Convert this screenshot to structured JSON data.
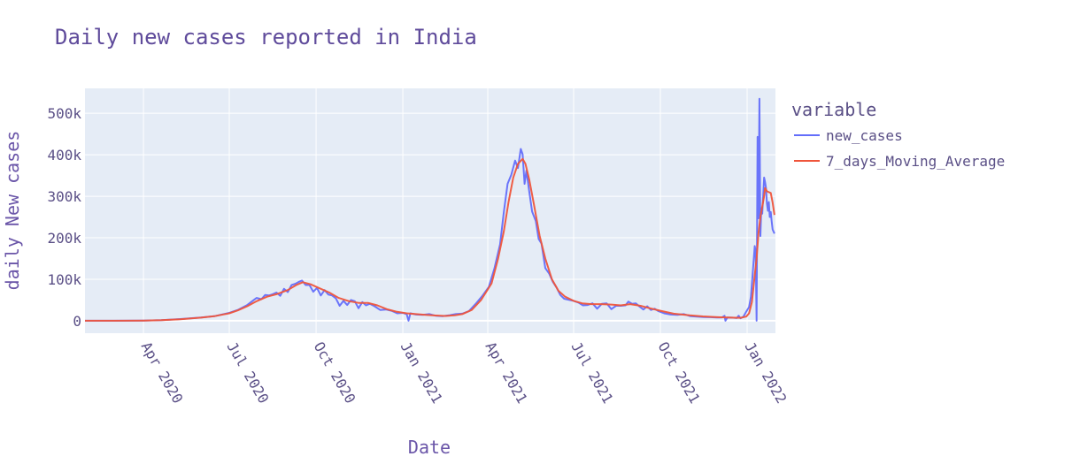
{
  "chart_data": {
    "type": "line",
    "title": "Daily new cases reported in India",
    "xlabel": "Date",
    "ylabel": "daily New cases",
    "legend_title": "variable",
    "legend_position": "right",
    "x_range": [
      "2020-01-30",
      "2022-01-31"
    ],
    "y_range": [
      -30000,
      560000
    ],
    "x_ticks": [
      {
        "date": "2020-04-01",
        "label": "Apr 2020"
      },
      {
        "date": "2020-07-01",
        "label": "Jul 2020"
      },
      {
        "date": "2020-10-01",
        "label": "Oct 2020"
      },
      {
        "date": "2021-01-01",
        "label": "Jan 2021"
      },
      {
        "date": "2021-04-01",
        "label": "Apr 2021"
      },
      {
        "date": "2021-07-01",
        "label": "Jul 2021"
      },
      {
        "date": "2021-10-01",
        "label": "Oct 2021"
      },
      {
        "date": "2022-01-01",
        "label": "Jan 2022"
      }
    ],
    "y_ticks": [
      {
        "value": 0,
        "label": "0"
      },
      {
        "value": 100000,
        "label": "100k"
      },
      {
        "value": 200000,
        "label": "200k"
      },
      {
        "value": 300000,
        "label": "300k"
      },
      {
        "value": 400000,
        "label": "400k"
      },
      {
        "value": 500000,
        "label": "500k"
      }
    ],
    "grid": true,
    "colors": {
      "plot_bg": "#e5ecf6",
      "grid": "#ffffff"
    },
    "series": [
      {
        "name": "new_cases",
        "color": "#636efa",
        "points": [
          [
            "2020-01-30",
            0
          ],
          [
            "2020-03-01",
            0
          ],
          [
            "2020-04-01",
            400
          ],
          [
            "2020-04-20",
            1500
          ],
          [
            "2020-05-10",
            4000
          ],
          [
            "2020-06-01",
            8000
          ],
          [
            "2020-06-15",
            11000
          ],
          [
            "2020-07-01",
            19000
          ],
          [
            "2020-07-10",
            26000
          ],
          [
            "2020-07-20",
            38000
          ],
          [
            "2020-07-27",
            50000
          ],
          [
            "2020-07-30",
            55000
          ],
          [
            "2020-08-04",
            52000
          ],
          [
            "2020-08-08",
            62000
          ],
          [
            "2020-08-12",
            61000
          ],
          [
            "2020-08-16",
            64000
          ],
          [
            "2020-08-20",
            68000
          ],
          [
            "2020-08-24",
            60000
          ],
          [
            "2020-08-28",
            77000
          ],
          [
            "2020-09-01",
            69000
          ],
          [
            "2020-09-05",
            86000
          ],
          [
            "2020-09-09",
            89000
          ],
          [
            "2020-09-13",
            94000
          ],
          [
            "2020-09-16",
            97000
          ],
          [
            "2020-09-20",
            86000
          ],
          [
            "2020-09-24",
            86000
          ],
          [
            "2020-09-28",
            70000
          ],
          [
            "2020-10-02",
            79000
          ],
          [
            "2020-10-06",
            61000
          ],
          [
            "2020-10-10",
            74000
          ],
          [
            "2020-10-14",
            63000
          ],
          [
            "2020-10-18",
            61000
          ],
          [
            "2020-10-22",
            54000
          ],
          [
            "2020-10-26",
            36000
          ],
          [
            "2020-10-30",
            48000
          ],
          [
            "2020-11-03",
            38000
          ],
          [
            "2020-11-07",
            50000
          ],
          [
            "2020-11-11",
            47000
          ],
          [
            "2020-11-15",
            30000
          ],
          [
            "2020-11-19",
            45000
          ],
          [
            "2020-11-23",
            37000
          ],
          [
            "2020-11-27",
            41000
          ],
          [
            "2020-12-02",
            35000
          ],
          [
            "2020-12-08",
            26000
          ],
          [
            "2020-12-14",
            27000
          ],
          [
            "2020-12-20",
            24000
          ],
          [
            "2020-12-26",
            18000
          ],
          [
            "2021-01-01",
            19000
          ],
          [
            "2021-01-05",
            16000
          ],
          [
            "2021-01-07",
            0
          ],
          [
            "2021-01-09",
            18000
          ],
          [
            "2021-01-15",
            15000
          ],
          [
            "2021-01-22",
            14000
          ],
          [
            "2021-01-29",
            16000
          ],
          [
            "2021-02-05",
            12000
          ],
          [
            "2021-02-12",
            11000
          ],
          [
            "2021-02-19",
            13000
          ],
          [
            "2021-02-26",
            16000
          ],
          [
            "2021-03-05",
            17000
          ],
          [
            "2021-03-12",
            23000
          ],
          [
            "2021-03-19",
            40000
          ],
          [
            "2021-03-26",
            59000
          ],
          [
            "2021-04-02",
            81000
          ],
          [
            "2021-04-08",
            126000
          ],
          [
            "2021-04-14",
            184000
          ],
          [
            "2021-04-18",
            261000
          ],
          [
            "2021-04-22",
            330000
          ],
          [
            "2021-04-26",
            352000
          ],
          [
            "2021-04-30",
            386000
          ],
          [
            "2021-05-03",
            368000
          ],
          [
            "2021-05-06",
            414000
          ],
          [
            "2021-05-08",
            401000
          ],
          [
            "2021-05-10",
            330000
          ],
          [
            "2021-05-12",
            362000
          ],
          [
            "2021-05-15",
            311000
          ],
          [
            "2021-05-18",
            263000
          ],
          [
            "2021-05-22",
            240000
          ],
          [
            "2021-05-25",
            197000
          ],
          [
            "2021-05-28",
            186000
          ],
          [
            "2021-06-01",
            127000
          ],
          [
            "2021-06-05",
            114000
          ],
          [
            "2021-06-09",
            94000
          ],
          [
            "2021-06-13",
            80000
          ],
          [
            "2021-06-17",
            62000
          ],
          [
            "2021-06-21",
            53000
          ],
          [
            "2021-06-25",
            51000
          ],
          [
            "2021-07-01",
            48000
          ],
          [
            "2021-07-06",
            44000
          ],
          [
            "2021-07-11",
            37000
          ],
          [
            "2021-07-16",
            38000
          ],
          [
            "2021-07-21",
            42000
          ],
          [
            "2021-07-26",
            29000
          ],
          [
            "2021-07-31",
            41000
          ],
          [
            "2021-08-05",
            42000
          ],
          [
            "2021-08-10",
            28000
          ],
          [
            "2021-08-15",
            36000
          ],
          [
            "2021-08-20",
            36000
          ],
          [
            "2021-08-25",
            37000
          ],
          [
            "2021-08-28",
            46000
          ],
          [
            "2021-09-01",
            41000
          ],
          [
            "2021-09-05",
            42000
          ],
          [
            "2021-09-09",
            34000
          ],
          [
            "2021-09-13",
            27000
          ],
          [
            "2021-09-17",
            35000
          ],
          [
            "2021-09-21",
            26000
          ],
          [
            "2021-09-25",
            29000
          ],
          [
            "2021-09-29",
            23000
          ],
          [
            "2021-10-05",
            18000
          ],
          [
            "2021-10-12",
            15000
          ],
          [
            "2021-10-19",
            14000
          ],
          [
            "2021-10-26",
            16000
          ],
          [
            "2021-11-02",
            11000
          ],
          [
            "2021-11-09",
            10000
          ],
          [
            "2021-11-16",
            9000
          ],
          [
            "2021-11-23",
            8500
          ],
          [
            "2021-11-30",
            8000
          ],
          [
            "2021-12-05",
            8000
          ],
          [
            "2021-12-08",
            12000
          ],
          [
            "2021-12-09",
            0
          ],
          [
            "2021-12-11",
            8000
          ],
          [
            "2021-12-16",
            7500
          ],
          [
            "2021-12-21",
            6500
          ],
          [
            "2021-12-23",
            12000
          ],
          [
            "2021-12-25",
            6000
          ],
          [
            "2021-12-28",
            10000
          ],
          [
            "2021-12-31",
            22000
          ],
          [
            "2022-01-03",
            33000
          ],
          [
            "2022-01-05",
            58000
          ],
          [
            "2022-01-07",
            117000
          ],
          [
            "2022-01-09",
            180000
          ],
          [
            "2022-01-10",
            168000
          ],
          [
            "2022-01-11",
            0
          ],
          [
            "2022-01-12",
            443000
          ],
          [
            "2022-01-13",
            247000
          ],
          [
            "2022-01-14",
            535000
          ],
          [
            "2022-01-15",
            204000
          ],
          [
            "2022-01-16",
            271000
          ],
          [
            "2022-01-17",
            258000
          ],
          [
            "2022-01-18",
            300000
          ],
          [
            "2022-01-19",
            345000
          ],
          [
            "2022-01-20",
            334000
          ],
          [
            "2022-01-21",
            320000
          ],
          [
            "2022-01-22",
            282000
          ],
          [
            "2022-01-23",
            265000
          ],
          [
            "2022-01-24",
            286000
          ],
          [
            "2022-01-25",
            250000
          ],
          [
            "2022-01-26",
            262000
          ],
          [
            "2022-01-27",
            240000
          ],
          [
            "2022-01-28",
            220000
          ],
          [
            "2022-01-30",
            210000
          ]
        ]
      },
      {
        "name": "7_days_Moving_Average",
        "color": "#ef553b",
        "points": [
          [
            "2020-01-30",
            0
          ],
          [
            "2020-03-01",
            0
          ],
          [
            "2020-04-01",
            300
          ],
          [
            "2020-04-20",
            1300
          ],
          [
            "2020-05-10",
            3600
          ],
          [
            "2020-06-01",
            7500
          ],
          [
            "2020-06-15",
            11000
          ],
          [
            "2020-07-01",
            18000
          ],
          [
            "2020-07-10",
            25000
          ],
          [
            "2020-07-20",
            35000
          ],
          [
            "2020-07-30",
            47000
          ],
          [
            "2020-08-10",
            58000
          ],
          [
            "2020-08-20",
            64000
          ],
          [
            "2020-09-01",
            74000
          ],
          [
            "2020-09-10",
            86000
          ],
          [
            "2020-09-17",
            93000
          ],
          [
            "2020-09-25",
            88000
          ],
          [
            "2020-10-05",
            78000
          ],
          [
            "2020-10-15",
            68000
          ],
          [
            "2020-10-25",
            55000
          ],
          [
            "2020-11-05",
            47000
          ],
          [
            "2020-11-15",
            43000
          ],
          [
            "2020-11-25",
            43000
          ],
          [
            "2020-12-05",
            37000
          ],
          [
            "2020-12-15",
            28000
          ],
          [
            "2020-12-25",
            22000
          ],
          [
            "2021-01-05",
            18000
          ],
          [
            "2021-01-15",
            16000
          ],
          [
            "2021-01-25",
            14000
          ],
          [
            "2021-02-05",
            12500
          ],
          [
            "2021-02-15",
            11500
          ],
          [
            "2021-02-25",
            13000
          ],
          [
            "2021-03-05",
            16000
          ],
          [
            "2021-03-15",
            26000
          ],
          [
            "2021-03-25",
            50000
          ],
          [
            "2021-04-05",
            90000
          ],
          [
            "2021-04-12",
            150000
          ],
          [
            "2021-04-18",
            215000
          ],
          [
            "2021-04-23",
            285000
          ],
          [
            "2021-04-28",
            345000
          ],
          [
            "2021-05-03",
            378000
          ],
          [
            "2021-05-08",
            390000
          ],
          [
            "2021-05-11",
            378000
          ],
          [
            "2021-05-15",
            340000
          ],
          [
            "2021-05-20",
            280000
          ],
          [
            "2021-05-26",
            205000
          ],
          [
            "2021-06-01",
            150000
          ],
          [
            "2021-06-08",
            100000
          ],
          [
            "2021-06-15",
            72000
          ],
          [
            "2021-06-22",
            58000
          ],
          [
            "2021-07-01",
            48000
          ],
          [
            "2021-07-10",
            42000
          ],
          [
            "2021-07-20",
            40000
          ],
          [
            "2021-07-30",
            40000
          ],
          [
            "2021-08-10",
            39000
          ],
          [
            "2021-08-20",
            37000
          ],
          [
            "2021-08-30",
            40000
          ],
          [
            "2021-09-10",
            36000
          ],
          [
            "2021-09-20",
            30000
          ],
          [
            "2021-10-01",
            24000
          ],
          [
            "2021-10-15",
            17000
          ],
          [
            "2021-11-01",
            13000
          ],
          [
            "2021-11-15",
            10500
          ],
          [
            "2021-12-01",
            8500
          ],
          [
            "2021-12-15",
            7500
          ],
          [
            "2021-12-25",
            7000
          ],
          [
            "2021-12-31",
            10000
          ],
          [
            "2022-01-03",
            18000
          ],
          [
            "2022-01-06",
            45000
          ],
          [
            "2022-01-09",
            110000
          ],
          [
            "2022-01-11",
            150000
          ],
          [
            "2022-01-13",
            210000
          ],
          [
            "2022-01-15",
            250000
          ],
          [
            "2022-01-17",
            275000
          ],
          [
            "2022-01-19",
            300000
          ],
          [
            "2022-01-20",
            320000
          ],
          [
            "2022-01-22",
            312000
          ],
          [
            "2022-01-24",
            310000
          ],
          [
            "2022-01-26",
            308000
          ],
          [
            "2022-01-28",
            285000
          ],
          [
            "2022-01-30",
            255000
          ]
        ]
      }
    ]
  }
}
